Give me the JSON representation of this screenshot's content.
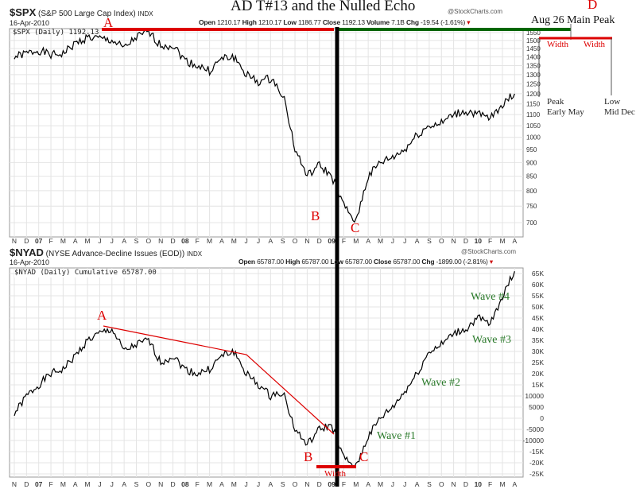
{
  "title": "AD T#13 and the Nulled Echo",
  "watermark": "@StockCharts.com",
  "upper": {
    "symbol": "$SPX",
    "name": "(S&P 500 Large Cap Index)",
    "exchange": "INDX",
    "date": "16-Apr-2010",
    "open_l": "Open",
    "open": "1210.17",
    "high_l": "High",
    "high": "1210.17",
    "low_l": "Low",
    "low": "1186.77",
    "close_l": "Close",
    "close": "1192.13",
    "vol_l": "Volume",
    "vol": "7.1B",
    "chg_l": "Chg",
    "chg": "-19.54 (-1.61%)",
    "legend": "$SPX (Daily) 1192.13"
  },
  "lower": {
    "symbol": "$NYAD",
    "name": "(NYSE Advance-Decline Issues (EOD))",
    "exchange": "INDX",
    "date": "16-Apr-2010",
    "open_l": "Open",
    "open": "65787.00",
    "high_l": "High",
    "high": "65787.00",
    "low_l": "Low",
    "low": "65787.00",
    "close_l": "Close",
    "close": "65787.00",
    "chg_l": "Chg",
    "chg": "-1899.00 (-2.81%)",
    "legend": "$NYAD (Daily) Cumulative 65787.00"
  },
  "annotations": {
    "A": "A",
    "B": "B",
    "C": "C",
    "D": "D",
    "main_peak": "Aug 26 Main Peak",
    "width": "Width",
    "peak1": "Peak",
    "peak2": "Early May",
    "low1": "Low",
    "low2": "Mid Dec",
    "wave1": "Wave #1",
    "wave2": "Wave #2",
    "wave3": "Wave #3",
    "wave4": "Wave #4"
  },
  "colors": {
    "red": "#dd0000",
    "green": "#006600",
    "line": "#000000"
  },
  "chart_data": [
    {
      "type": "line",
      "title": "$SPX",
      "ylim": [
        700,
        1550
      ],
      "yscale": "log",
      "yticks": [
        700,
        750,
        800,
        850,
        900,
        950,
        1000,
        1050,
        1100,
        1150,
        1200,
        1250,
        1300,
        1350,
        1400,
        1450,
        1500,
        1550
      ],
      "x": [
        "N",
        "D",
        "07",
        "F",
        "M",
        "A",
        "M",
        "J",
        "J",
        "A",
        "S",
        "O",
        "N",
        "D",
        "08",
        "F",
        "M",
        "A",
        "M",
        "J",
        "J",
        "A",
        "S",
        "O",
        "N",
        "D",
        "09",
        "F",
        "M",
        "A",
        "M",
        "J",
        "J",
        "A",
        "S",
        "O",
        "N",
        "D",
        "10",
        "F",
        "M",
        "A"
      ],
      "values": [
        1400,
        1420,
        1440,
        1410,
        1420,
        1480,
        1520,
        1510,
        1500,
        1450,
        1520,
        1550,
        1470,
        1470,
        1380,
        1350,
        1320,
        1390,
        1400,
        1300,
        1260,
        1280,
        1200,
        950,
        850,
        890,
        850,
        750,
        700,
        850,
        900,
        920,
        950,
        1010,
        1050,
        1060,
        1100,
        1115,
        1100,
        1080,
        1150,
        1200
      ]
    },
    {
      "type": "line",
      "title": "$NYAD",
      "ylim": [
        -25000,
        65000
      ],
      "yticks": [
        "65K",
        "60K",
        "55K",
        "50K",
        "45K",
        "40K",
        "35K",
        "30K",
        "25K",
        "20K",
        "15K",
        "10000",
        "5000",
        "0",
        "-5000",
        "-10000",
        "-15K",
        "-20K",
        "-25K"
      ],
      "x": [
        "N",
        "D",
        "07",
        "F",
        "M",
        "A",
        "M",
        "J",
        "J",
        "A",
        "S",
        "O",
        "N",
        "D",
        "08",
        "F",
        "M",
        "A",
        "M",
        "J",
        "J",
        "A",
        "S",
        "O",
        "N",
        "D",
        "09",
        "F",
        "M",
        "A",
        "M",
        "J",
        "J",
        "A",
        "S",
        "O",
        "N",
        "D",
        "10",
        "F",
        "M",
        "A"
      ],
      "values": [
        2000,
        10000,
        15000,
        20000,
        22000,
        28000,
        35000,
        38000,
        40000,
        30000,
        33000,
        35000,
        25000,
        28000,
        22000,
        20000,
        22000,
        28000,
        30000,
        20000,
        15000,
        10000,
        12000,
        -5000,
        -12000,
        -5000,
        -3000,
        -18000,
        -22000,
        -8000,
        0,
        5000,
        12000,
        20000,
        30000,
        33000,
        38000,
        40000,
        45000,
        42000,
        55000,
        66000
      ]
    }
  ]
}
